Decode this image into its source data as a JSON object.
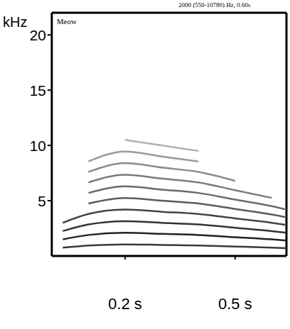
{
  "chart_data": {
    "type": "line",
    "title": "Meow",
    "subtitle": "2000 (550-10780) Hz, 0.60s",
    "y_label": "kHz",
    "x": [
      0.03,
      0.1,
      0.2,
      0.3,
      0.4,
      0.5,
      0.6,
      0.64
    ],
    "series": [
      {
        "color": "#3a3a3a",
        "values": [
          0.75,
          0.95,
          1.05,
          1.0,
          0.95,
          0.85,
          0.75,
          0.7
        ]
      },
      {
        "color": "#222222",
        "values": [
          1.5,
          1.9,
          2.1,
          2.0,
          1.9,
          1.7,
          1.5,
          1.4
        ]
      },
      {
        "color": "#333333",
        "values": [
          2.25,
          2.85,
          3.15,
          3.0,
          2.85,
          2.55,
          2.25,
          2.1
        ]
      },
      {
        "color": "#444444",
        "values": [
          3.0,
          3.8,
          4.2,
          4.0,
          3.8,
          3.4,
          3.0,
          2.8
        ]
      },
      {
        "color": "#5a5a5a",
        "values": [
          null,
          4.75,
          5.25,
          5.0,
          4.75,
          4.25,
          3.75,
          3.5
        ]
      },
      {
        "color": "#6a6a6a",
        "values": [
          null,
          5.7,
          6.3,
          6.0,
          5.7,
          5.1,
          4.5,
          4.2
        ]
      },
      {
        "color": "#7a7a7a",
        "values": [
          null,
          6.65,
          7.35,
          7.0,
          6.65,
          5.95,
          5.25,
          null
        ]
      },
      {
        "color": "#8a8a8a",
        "values": [
          null,
          7.6,
          8.4,
          8.0,
          7.6,
          6.8,
          null,
          null
        ]
      },
      {
        "color": "#9a9a9a",
        "values": [
          null,
          8.55,
          9.45,
          9.0,
          8.55,
          null,
          null,
          null
        ]
      },
      {
        "color": "#b0b0b0",
        "values": [
          null,
          null,
          10.5,
          10.0,
          9.5,
          null,
          null,
          null
        ]
      }
    ],
    "xlim": [
      0,
      0.64
    ],
    "ylim": [
      0,
      22
    ],
    "xticks": [
      {
        "value": 0.2,
        "label": "0.2 s"
      },
      {
        "value": 0.5,
        "label": "0.5 s"
      }
    ],
    "yticks": [
      5,
      10,
      15,
      20
    ],
    "grid": false
  }
}
